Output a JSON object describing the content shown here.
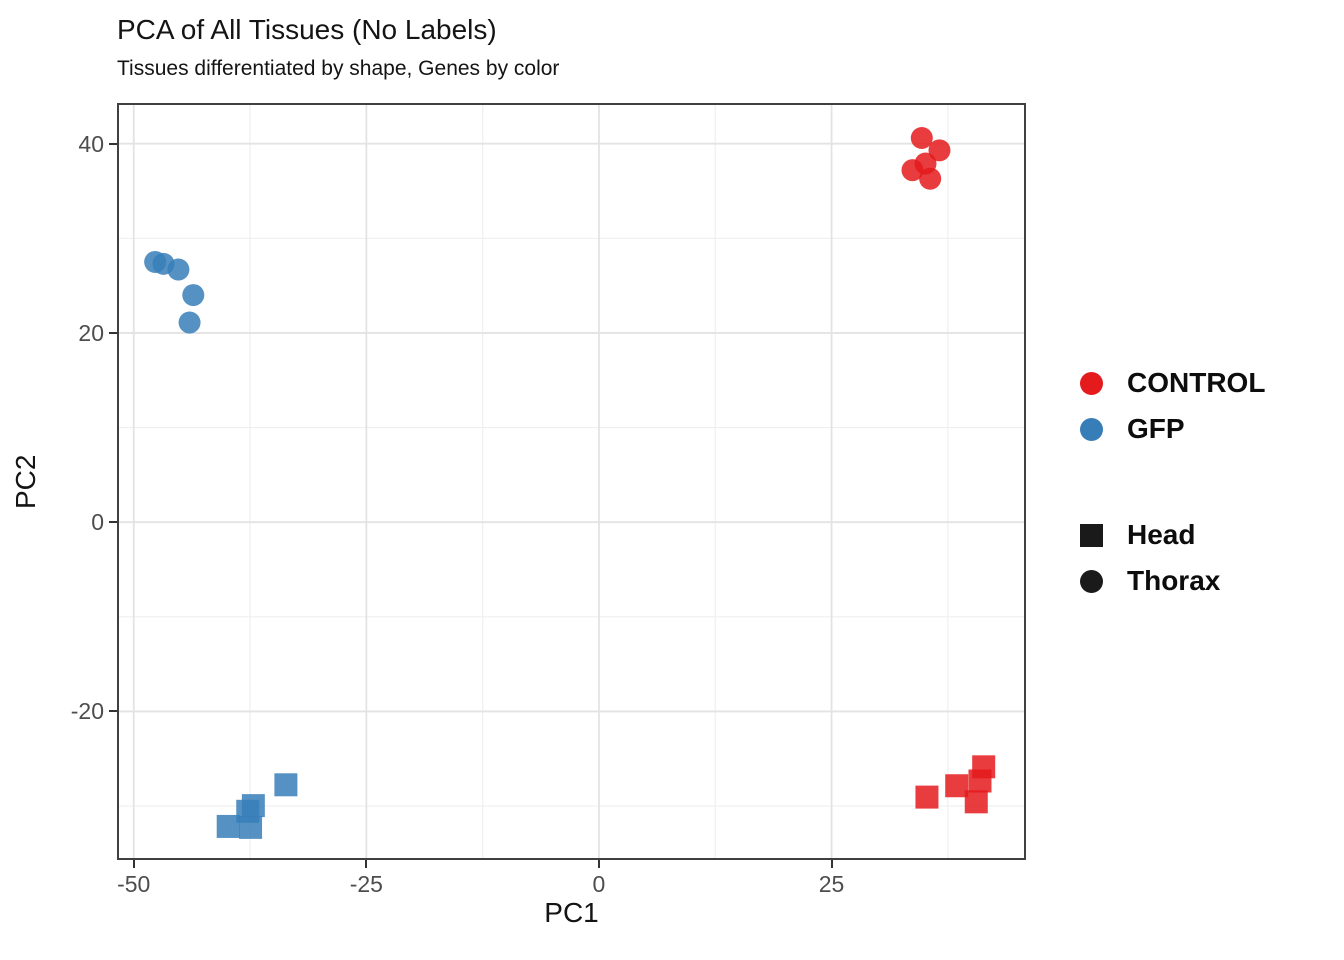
{
  "figure": {
    "title": "PCA of All Tissues (No Labels)",
    "subtitle": "Tissues differentiated by shape, Genes by color"
  },
  "chart_data": {
    "type": "scatter",
    "title": "PCA of All Tissues (No Labels)",
    "subtitle": "Tissues differentiated by shape, Genes by color",
    "xlabel": "PC1",
    "ylabel": "PC2",
    "xlim": [
      -51.8,
      45.9
    ],
    "ylim": [
      -35.7,
      44.3
    ],
    "x_ticks": [
      -50,
      -25,
      0,
      25
    ],
    "y_ticks": [
      40,
      20,
      0,
      -20
    ],
    "x_minor_ticks": [
      -37.5,
      -12.5,
      12.5,
      37.5
    ],
    "y_minor_ticks": [
      30,
      10,
      -10,
      -30
    ],
    "grid": "major+minor",
    "legend_position": "right",
    "point_alpha": 0.85,
    "marker_radius_px": 11,
    "colors": {
      "CONTROL": "#e41a1c",
      "GFP": "#377eb8"
    },
    "series": [
      {
        "name": "CONTROL Thorax",
        "gene": "CONTROL",
        "tissue": "Thorax",
        "shape": "circle",
        "color": "#e41a1c",
        "points": [
          [
            34.7,
            40.6
          ],
          [
            36.6,
            39.3
          ],
          [
            35.1,
            37.9
          ],
          [
            33.7,
            37.2
          ],
          [
            35.6,
            36.3
          ]
        ]
      },
      {
        "name": "CONTROL Head",
        "gene": "CONTROL",
        "tissue": "Head",
        "shape": "square",
        "color": "#e41a1c",
        "points": [
          [
            35.2,
            -29.0
          ],
          [
            38.4,
            -27.8
          ],
          [
            41.3,
            -25.8
          ],
          [
            40.9,
            -27.3
          ],
          [
            40.5,
            -29.5
          ]
        ]
      },
      {
        "name": "GFP Thorax",
        "gene": "GFP",
        "tissue": "Thorax",
        "shape": "circle",
        "color": "#377eb8",
        "points": [
          [
            -47.7,
            27.5
          ],
          [
            -46.8,
            27.3
          ],
          [
            -45.2,
            26.7
          ],
          [
            -43.6,
            24.0
          ],
          [
            -44.0,
            21.1
          ]
        ]
      },
      {
        "name": "GFP Head",
        "gene": "GFP",
        "tissue": "Head",
        "shape": "square",
        "color": "#377eb8",
        "points": [
          [
            -33.7,
            -27.7
          ],
          [
            -37.2,
            -29.9
          ],
          [
            -37.8,
            -30.5
          ],
          [
            -39.9,
            -32.1
          ],
          [
            -37.5,
            -32.2
          ]
        ]
      }
    ]
  },
  "axes": {
    "x_title": "PC1",
    "y_title": "PC2",
    "x_tick_labels": [
      "-50",
      "-25",
      "0",
      "25"
    ],
    "y_tick_labels": [
      "40",
      "20",
      "0",
      "-20"
    ]
  },
  "legend": {
    "color_group": {
      "items": [
        {
          "label": "CONTROL",
          "color": "#e41a1c",
          "shape": "circle"
        },
        {
          "label": "GFP",
          "color": "#377eb8",
          "shape": "circle"
        }
      ]
    },
    "shape_group": {
      "items": [
        {
          "label": "Head",
          "color": "#1a1a1a",
          "shape": "square"
        },
        {
          "label": "Thorax",
          "color": "#1a1a1a",
          "shape": "circle"
        }
      ]
    }
  },
  "style": {
    "panel_border_color": "#404040",
    "grid_major_color": "#e3e3e3",
    "grid_minor_color": "#efefef",
    "tick_label_color": "#4d4d4d"
  }
}
